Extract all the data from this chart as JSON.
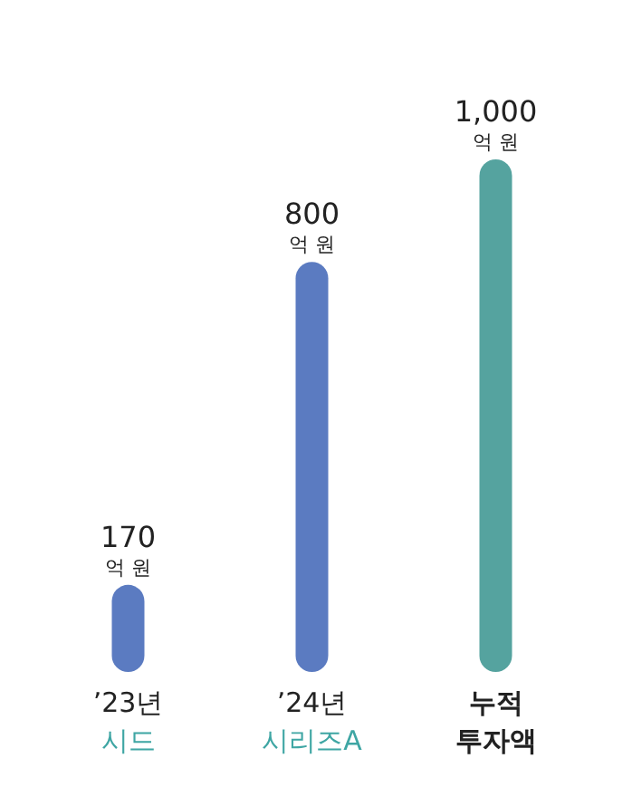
{
  "chart_data": {
    "type": "bar",
    "categories": [
      "’23년\n시드",
      "’24년\n시리즈A",
      "누적\n투자액"
    ],
    "values": [
      170,
      800,
      1000
    ],
    "colors": [
      "#5b7bc1",
      "#5b7bc1",
      "#55a39f"
    ],
    "value_labels": [
      "170 억 원",
      "800 억 원",
      "1,000 억 원"
    ]
  }
}
